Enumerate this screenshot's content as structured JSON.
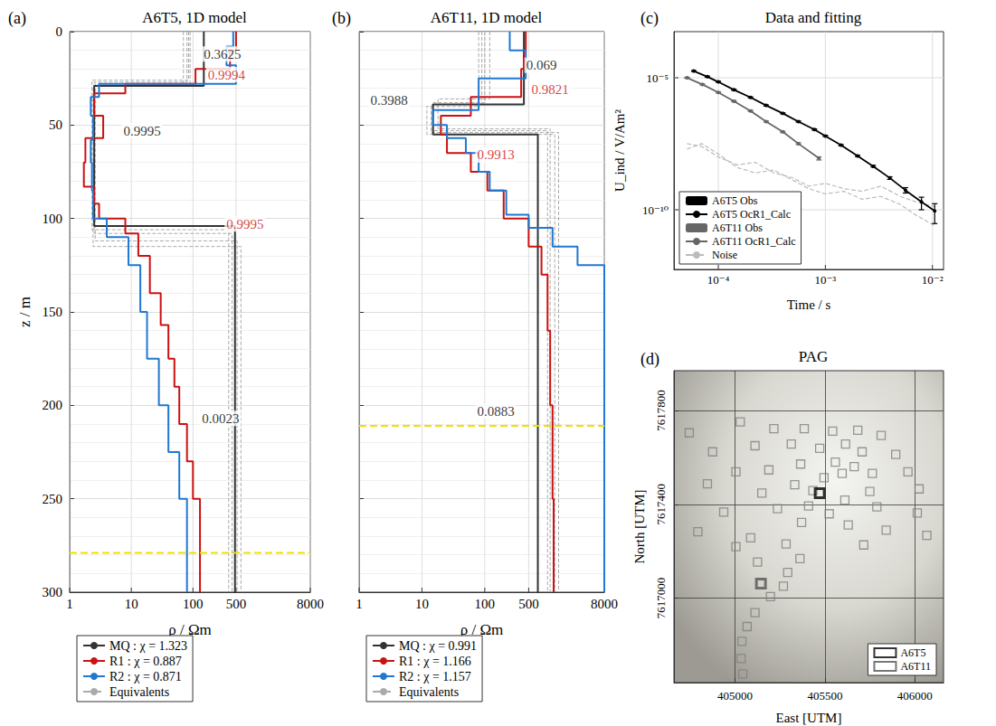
{
  "chart_data": [
    {
      "type": "step",
      "label": "(a)",
      "title": "A6T5, 1D model",
      "x_label": "ρ / Ωm",
      "y_label": "z / m",
      "log": "x",
      "xlim": [
        1,
        8000
      ],
      "xticks": [
        1,
        10,
        100,
        500,
        8000
      ],
      "ylim": [
        300,
        0
      ],
      "yticks": [
        0,
        50,
        100,
        150,
        200,
        250,
        300
      ],
      "grid": true,
      "legend": "bottom",
      "series": [
        {
          "name": "MQ : χ = 1.323",
          "color": "#333333",
          "rho": [
            150,
            2.5,
            480
          ],
          "depth": [
            0,
            29,
            104,
            300
          ]
        },
        {
          "name": "R1 : χ = 0.887",
          "color": "#cc1111",
          "rho": [
            500,
            400,
            110,
            8,
            2.5,
            3.5,
            1.8,
            1.7,
            2.5,
            3,
            8,
            13,
            20,
            30,
            40,
            50,
            60,
            80,
            100,
            130
          ],
          "depth": [
            0,
            10,
            20,
            28,
            33,
            45,
            57,
            70,
            83,
            92,
            100,
            108,
            120,
            140,
            157,
            175,
            190,
            210,
            230,
            250,
            300
          ]
        },
        {
          "name": "R2 : χ = 0.871",
          "color": "#1f78d1",
          "rho": [
            450,
            350,
            500,
            3,
            2.2,
            2.4,
            2.2,
            2.3,
            2.4,
            4,
            9,
            14,
            18,
            28,
            40,
            60,
            80
          ],
          "depth": [
            0,
            8,
            18,
            28,
            35,
            45,
            58,
            70,
            85,
            100,
            110,
            125,
            150,
            175,
            200,
            225,
            250,
            300
          ]
        }
      ],
      "equivalents": {
        "name": "Equivalents",
        "color": "#aaaaaa",
        "line_style": "dashed",
        "models": [
          {
            "rho": [
              80,
              2.5,
              430
            ],
            "depth": [
              0,
              27,
              108,
              300
            ]
          },
          {
            "rho": [
              90,
              2.6,
              520
            ],
            "depth": [
              0,
              28,
              112,
              300
            ]
          },
          {
            "rho": [
              70,
              2.4,
              600
            ],
            "depth": [
              0,
              29,
              115,
              300
            ]
          },
          {
            "rho": [
              85,
              2.3,
              380
            ],
            "depth": [
              0,
              26,
              106,
              300
            ]
          }
        ]
      },
      "hlines": [
        {
          "y": 279,
          "color": "#f0e000",
          "line_style": "dashed"
        }
      ],
      "annotations": [
        {
          "text": "0.3625",
          "x": 300,
          "y": 12,
          "color": "#000000"
        },
        {
          "text": "0.9994",
          "x": 350,
          "y": 23,
          "color": "#cc1111"
        },
        {
          "text": "0.9995",
          "x": 15,
          "y": 53,
          "color": "#000000"
        },
        {
          "text": "0.9995",
          "x": 700,
          "y": 103,
          "color": "#cc1111"
        },
        {
          "text": "0.0023",
          "x": 280,
          "y": 207,
          "color": "#000000"
        }
      ]
    },
    {
      "type": "step",
      "label": "(b)",
      "title": "A6T11, 1D model",
      "x_label": "ρ / Ωm",
      "log": "x",
      "xlim": [
        1,
        8000
      ],
      "xticks": [
        1,
        10,
        100,
        500,
        8000
      ],
      "ylim": [
        300,
        0
      ],
      "yticks": [
        0,
        50,
        100,
        150,
        200,
        250,
        300
      ],
      "grid": true,
      "legend": "bottom",
      "tick_labels": "x",
      "series": [
        {
          "name": "MQ : χ = 0.991",
          "color": "#333333",
          "rho": [
            420,
            15,
            700
          ],
          "depth": [
            0,
            39,
            55,
            300
          ]
        },
        {
          "name": "R1 : χ = 1.166",
          "color": "#cc1111",
          "rho": [
            450,
            420,
            380,
            60,
            20,
            25,
            60,
            110,
            200,
            500,
            800,
            1000,
            1100,
            1200,
            1250
          ],
          "depth": [
            0,
            10,
            20,
            35,
            45,
            55,
            65,
            75,
            85,
            100,
            115,
            130,
            160,
            200,
            250,
            300
          ]
        },
        {
          "name": "R2 : χ = 1.157",
          "color": "#1f78d1",
          "rho": [
            250,
            450,
            80,
            15,
            25,
            50,
            80,
            120,
            220,
            500,
            1200,
            3000,
            8000
          ],
          "depth": [
            0,
            10,
            25,
            42,
            50,
            57,
            65,
            75,
            85,
            98,
            105,
            115,
            125,
            300
          ]
        }
      ],
      "equivalents": {
        "name": "Equivalents",
        "color": "#aaaaaa",
        "line_style": "dashed",
        "models": [
          {
            "rho": [
              100,
              15,
              1000
            ],
            "depth": [
              0,
              38,
              53,
              300
            ]
          },
          {
            "rho": [
              80,
              12,
              1300
            ],
            "depth": [
              0,
              40,
              55,
              300
            ]
          },
          {
            "rho": [
              120,
              18,
              1100
            ],
            "depth": [
              0,
              36,
              52,
              300
            ]
          },
          {
            "rho": [
              90,
              14,
              1500
            ],
            "depth": [
              0,
              39,
              54,
              300
            ]
          }
        ]
      },
      "hlines": [
        {
          "y": 211,
          "color": "#f0e000",
          "line_style": "dashed"
        }
      ],
      "annotations": [
        {
          "text": "0.069",
          "x": 800,
          "y": 18,
          "color": "#000000"
        },
        {
          "text": "0.9821",
          "x": 1100,
          "y": 31,
          "color": "#cc1111"
        },
        {
          "text": "0.3988",
          "x": 3,
          "y": 37,
          "color": "#000000"
        },
        {
          "text": "0.9913",
          "x": 150,
          "y": 66,
          "color": "#cc1111"
        },
        {
          "text": "0.0883",
          "x": 150,
          "y": 203,
          "color": "#000000"
        }
      ]
    },
    {
      "type": "line",
      "label": "(c)",
      "title": "Data and fitting",
      "x_label": "Time / s",
      "y_label": "U_ind / V/Am²",
      "log": true,
      "xlim": [
        3.85e-05,
        0.0127
      ],
      "xticks": [
        {
          "value": 0.0001,
          "label": "10⁻⁴"
        },
        {
          "value": 0.001,
          "label": "10⁻³"
        },
        {
          "value": 0.01,
          "label": "10⁻²"
        }
      ],
      "ylim": [
        5.5e-13,
        0.00056
      ],
      "yticks": [
        {
          "value": 1e-10,
          "label": "10⁻¹⁰"
        },
        {
          "value": 1e-05,
          "label": "10⁻⁵"
        }
      ],
      "grid": true,
      "legend": "lower left",
      "series": [
        {
          "name": "A6T5 Obs",
          "type": "errorbar",
          "color": "#000000",
          "x": [
            5.9e-05,
            7.9e-05,
            0.0001,
            0.00014,
            0.0002,
            0.00028,
            0.0004,
            0.00056,
            0.00079,
            0.001,
            0.0014,
            0.002,
            0.0028,
            0.004,
            0.0056,
            0.0079,
            0.0105
          ],
          "values": [
            1.8e-05,
            1.1e-05,
            7.1e-06,
            3.5e-06,
            1.8e-06,
            8.9e-07,
            4.5e-07,
            2.2e-07,
            1.1e-07,
            6.3e-08,
            2.8e-08,
            1.1e-08,
            4.5e-09,
            1.6e-09,
            5.6e-10,
            2e-10,
            1e-10
          ],
          "errors": [
            9e-07,
            5.5e-07,
            3.5e-07,
            1.8e-07,
            9e-08,
            4.5e-08,
            2.3e-08,
            1.1e-08,
            6e-09,
            3.5e-09,
            1.6e-09,
            7e-10,
            3.5e-10,
            1.8e-10,
            1.3e-10,
            1e-10,
            7e-11
          ]
        },
        {
          "name": "A6T5 OcR1_Calc",
          "type": "line",
          "marker": "circle",
          "color": "#000000",
          "x": [
            5.9e-05,
            7.9e-05,
            0.0001,
            0.00014,
            0.0002,
            0.00028,
            0.0004,
            0.00056,
            0.00079,
            0.001,
            0.0014,
            0.002,
            0.0028,
            0.004,
            0.0056,
            0.0079,
            0.0105
          ],
          "values": [
            1.8e-05,
            1.1e-05,
            7e-06,
            3.5e-06,
            1.8e-06,
            9e-07,
            4.5e-07,
            2.2e-07,
            1.1e-07,
            6.2e-08,
            2.8e-08,
            1.1e-08,
            4.4e-09,
            1.6e-09,
            5.5e-10,
            2e-10,
            9e-11
          ]
        },
        {
          "name": "A6T11 Obs",
          "type": "errorbar",
          "color": "#666666",
          "x": [
            5.1e-05,
            7.1e-05,
            0.0001,
            0.00014,
            0.0002,
            0.00028,
            0.0004,
            0.00056,
            0.00087
          ],
          "values": [
            1e-05,
            5.6e-06,
            2.8e-06,
            1.3e-06,
            5.6e-07,
            2.2e-07,
            8.9e-08,
            3.2e-08,
            8.9e-09
          ],
          "errors": [
            5e-07,
            2.8e-07,
            1.4e-07,
            7e-08,
            3e-08,
            1.2e-08,
            5e-09,
            2.5e-09,
            1.2e-09
          ]
        },
        {
          "name": "A6T11 OcR1_Calc",
          "type": "line",
          "marker": "circle",
          "color": "#666666",
          "x": [
            5.1e-05,
            7.1e-05,
            0.0001,
            0.00014,
            0.0002,
            0.00028,
            0.0004,
            0.00056,
            0.00087
          ],
          "values": [
            1e-05,
            5.6e-06,
            2.8e-06,
            1.3e-06,
            5.5e-07,
            2.2e-07,
            9e-08,
            3.2e-08,
            9e-09
          ]
        },
        {
          "name": "Noise",
          "type": "line",
          "line_style": "dashed",
          "color": "#bbbbbb",
          "x": [
            5.1e-05,
            7e-05,
            0.0001,
            0.00015,
            0.00022,
            0.00033,
            0.0005,
            0.0007,
            0.001,
            0.0015,
            0.0022,
            0.0033,
            0.005,
            0.007,
            0.0105
          ],
          "values": [
            3.2e-08,
            2.5e-08,
            1e-08,
            5e-09,
            6.3e-09,
            2.5e-09,
            1.6e-09,
            7.9e-10,
            1e-09,
            6.3e-10,
            5e-10,
            7.9e-10,
            3.2e-10,
            2e-10,
            1.3e-10
          ]
        },
        {
          "name": "Noise",
          "type": "line",
          "line_style": "dashed",
          "color": "#bbbbbb",
          "x": [
            5.1e-05,
            7e-05,
            0.0001,
            0.00015,
            0.00022,
            0.00033,
            0.0005,
            0.0007,
            0.001,
            0.0015,
            0.0022,
            0.0033,
            0.005,
            0.007,
            0.0105
          ],
          "values": [
            2e-08,
            3.2e-08,
            1.3e-08,
            4e-09,
            2.5e-09,
            3.2e-09,
            1.3e-09,
            6.3e-10,
            4e-10,
            5e-10,
            2.5e-10,
            3.2e-10,
            1.6e-10,
            6.3e-11,
            2.5e-11
          ]
        }
      ]
    },
    {
      "type": "scatter",
      "label": "(d)",
      "title": "PAG",
      "x_label": "East [UTM]",
      "y_label": "North [UTM]",
      "xlim": [
        404660,
        406160
      ],
      "xticks": [
        405000,
        405500,
        406000
      ],
      "ylim": [
        7616640,
        7617970
      ],
      "yticks": [
        7617000,
        7617400,
        7617800
      ],
      "grid": true,
      "legend": "lower right",
      "marker": "square",
      "stations": {
        "color": "#808080",
        "x": [
          404745,
          405029,
          405216,
          405385,
          405543,
          405683,
          404875,
          405111,
          405313,
          405471,
          405615,
          405707,
          405813,
          405894,
          405005,
          405188,
          405365,
          405558,
          405663,
          405764,
          405962,
          404846,
          405149,
          405332,
          405495,
          405596,
          405750,
          406024,
          404937,
          405236,
          405409,
          405611,
          405789,
          406014,
          404793,
          405087,
          405370,
          405630,
          405841,
          406067,
          405005,
          405284,
          405716,
          405361,
          405125,
          405293,
          405269,
          405197,
          405111,
          405067,
          405038,
          405034,
          405043,
          405524,
          405433
        ],
        "y": [
          7617705,
          7617752,
          7617723,
          7617723,
          7617712,
          7617716,
          7617624,
          7617650,
          7617657,
          7617639,
          7617657,
          7617624,
          7617694,
          7617613,
          7617539,
          7617547,
          7617572,
          7617580,
          7617561,
          7617532,
          7617539,
          7617488,
          7617448,
          7617484,
          7617514,
          7617532,
          7617455,
          7617466,
          7617367,
          7617382,
          7617393,
          7617418,
          7617389,
          7617363,
          7617283,
          7617257,
          7617323,
          7617312,
          7617290,
          7617268,
          7617220,
          7617231,
          7617227,
          7617169,
          7617154,
          7617110,
          7617051,
          7617007,
          7616938,
          7616879,
          7616816,
          7616743,
          7616677,
          7617360,
          7617459
        ]
      },
      "series": [
        {
          "name": "A6T5",
          "color": "#000000",
          "x": [
            405471
          ],
          "y": [
            7617448
          ]
        },
        {
          "name": "A6T11",
          "color": "#555555",
          "x": [
            405144
          ],
          "y": [
            7617062
          ]
        }
      ]
    }
  ]
}
